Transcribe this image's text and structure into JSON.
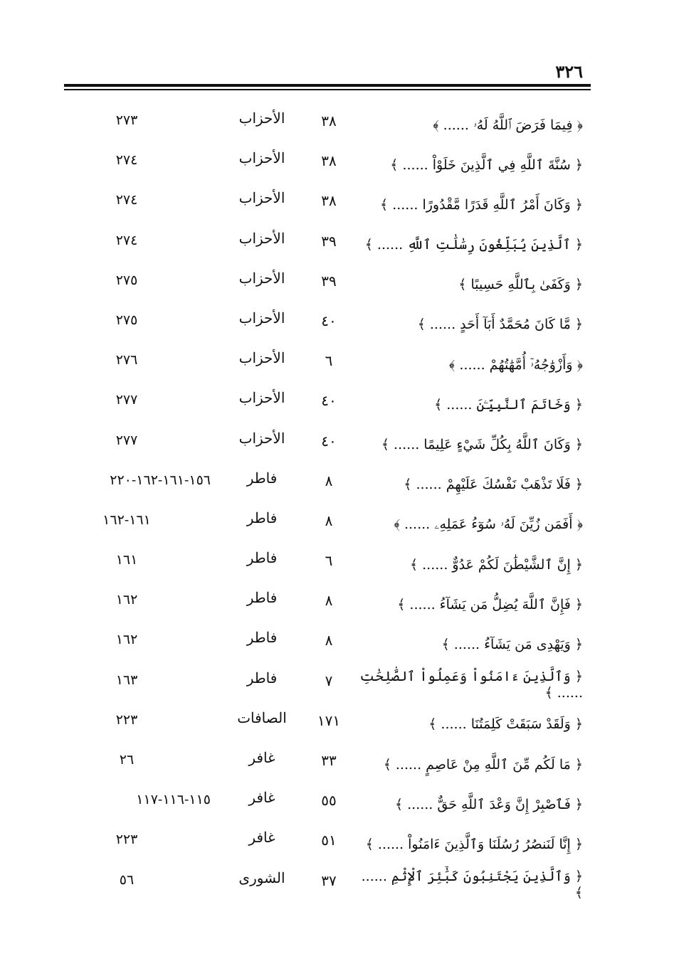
{
  "page_number": "٣٢٦",
  "rows": [
    {
      "verse": "﴿ فِيمَا فَرَضَ ٱللَّهُ لَهُۥ ...... ﴾",
      "ayah": "٣٨",
      "surah": "الأحزاب",
      "pages": "٢٧٣"
    },
    {
      "verse": "﴿ سُنَّةَ ٱللَّهِ فِي ٱلَّذِينَ خَلَوْاْ ...... ﴾",
      "ayah": "٣٨",
      "surah": "الأحزاب",
      "pages": "٢٧٤"
    },
    {
      "verse": "﴿ وَكَانَ أَمْرُ ٱللَّهِ قَدَرًا مَّقْدُورًا ...... ﴾",
      "ayah": "٣٨",
      "surah": "الأحزاب",
      "pages": "٢٧٤"
    },
    {
      "verse": "﴿ ٱلَّذِينَ يُبَلِّغُونَ رِسَٰلَٰتِ ٱللَّهِ ...... ﴾",
      "ayah": "٣٩",
      "surah": "الأحزاب",
      "pages": "٢٧٤"
    },
    {
      "verse": "﴿ وَكَفَىٰ بِٱللَّهِ حَسِيبًا ﴾",
      "ayah": "٣٩",
      "surah": "الأحزاب",
      "pages": "٢٧٥"
    },
    {
      "verse": "﴿ مَّا كَانَ مُحَمَّدٌ أَبَآ أَحَدٍ ...... ﴾",
      "ayah": "٤٠",
      "surah": "الأحزاب",
      "pages": "٢٧٥"
    },
    {
      "verse": "﴿ وَأَزْوَٰجُهُۥٓ أُمَّهَٰتُهُمْ ...... ﴾",
      "ayah": "٦",
      "surah": "الأحزاب",
      "pages": "٢٧٦"
    },
    {
      "verse": "﴿ وَخَاتَمَ ٱلنَّبِيِّـۧنَ ...... ﴾",
      "ayah": "٤٠",
      "surah": "الأحزاب",
      "pages": "٢٧٧"
    },
    {
      "verse": "﴿ وَكَانَ ٱللَّهُ بِكُلِّ شَيْءٍ عَلِيمًا ...... ﴾",
      "ayah": "٤٠",
      "surah": "الأحزاب",
      "pages": "٢٧٧"
    },
    {
      "verse": "﴿ فَلَا تَذْهَبْ نَفْسُكَ عَلَيْهِمْ ...... ﴾",
      "ayah": "٨",
      "surah": "فاطر",
      "pages": "١٥٦-١٦١-١٦٢-٢٢٠"
    },
    {
      "verse": "﴿ أَفَمَن زُيِّنَ لَهُۥ سُوٓءُ عَمَلِهِۦ ...... ﴾",
      "ayah": "٨",
      "surah": "فاطر",
      "pages": "١٦١-١٦٢"
    },
    {
      "verse": "﴿ إِنَّ ٱلشَّيْطَٰنَ لَكُمْ عَدُوٌّ ...... ﴾",
      "ayah": "٦",
      "surah": "فاطر",
      "pages": "١٦١"
    },
    {
      "verse": "﴿ فَإِنَّ ٱللَّهَ يُضِلُّ مَن يَشَآءُ ...... ﴾",
      "ayah": "٨",
      "surah": "فاطر",
      "pages": "١٦٢"
    },
    {
      "verse": "﴿ وَيَهْدِى مَن يَشَآءُ ...... ﴾",
      "ayah": "٨",
      "surah": "فاطر",
      "pages": "١٦٢"
    },
    {
      "verse": "﴿ وَٱلَّذِينَ ءَامَنُواْ وَعَمِلُواْ ٱلصَّٰلِحَٰتِ ...... ﴾",
      "ayah": "٧",
      "surah": "فاطر",
      "pages": "١٦٣"
    },
    {
      "verse": "﴿ وَلَقَدْ سَبَقَتْ كَلِمَتُنَا ...... ﴾",
      "ayah": "١٧١",
      "surah": "الصافات",
      "pages": "٢٢٣"
    },
    {
      "verse": "﴿ مَا لَكُم مِّنَ ٱللَّهِ مِنْ عَاصِمٍ ...... ﴾",
      "ayah": "٣٣",
      "surah": "غافر",
      "pages": "٢٦"
    },
    {
      "verse": "﴿ فَٱصْبِرْ إِنَّ وَعْدَ ٱللَّهِ حَقٌّ ...... ﴾",
      "ayah": "٥٥",
      "surah": "غافر",
      "pages": "١١٥-١١٦-١١٧"
    },
    {
      "verse": "﴿ إِنَّا لَنَنصُرُ رُسُلَنَا وَٱلَّذِينَ ءَامَنُواْ ...... ﴾",
      "ayah": "٥١",
      "surah": "غافر",
      "pages": "٢٢٣"
    },
    {
      "verse": "﴿ وَٱلَّذِينَ يَجْتَنِبُونَ كَبَٰٓئِرَ ٱلْإِثْمِ ...... ﴾",
      "ayah": "٣٧",
      "surah": "الشورى",
      "pages": "٥٦"
    }
  ]
}
